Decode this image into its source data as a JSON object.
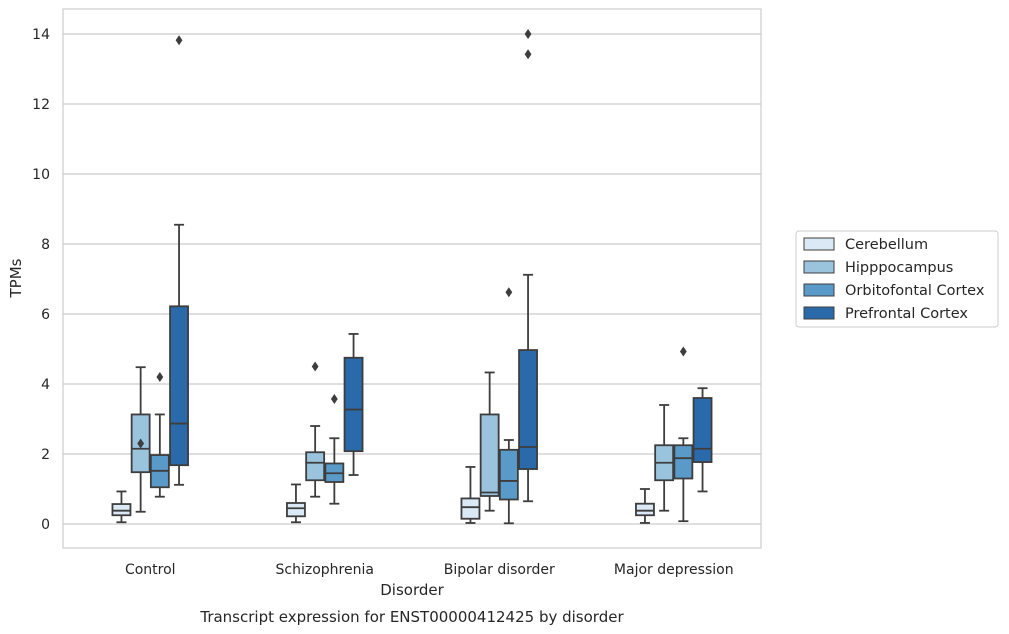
{
  "chart_data": {
    "type": "box",
    "title": "Transcript expression for ENST00000412425 by disorder",
    "xlabel": "Disorder",
    "ylabel": "TPMs",
    "ylim": [
      -0.7,
      14.7
    ],
    "yticks": [
      0,
      2,
      4,
      6,
      8,
      10,
      12,
      14
    ],
    "grid": "horizontal",
    "legend_position": "right",
    "categories": [
      "Control",
      "Schizophrenia",
      "Bipolar disorder",
      "Major depression"
    ],
    "series": [
      {
        "name": "Cerebellum",
        "color": "#dbe9f6",
        "boxes": [
          {
            "q1": 0.25,
            "median": 0.38,
            "q3": 0.57,
            "whislo": 0.05,
            "whishi": 0.93,
            "fliers": []
          },
          {
            "q1": 0.22,
            "median": 0.45,
            "q3": 0.6,
            "whislo": 0.05,
            "whishi": 1.13,
            "fliers": []
          },
          {
            "q1": 0.15,
            "median": 0.48,
            "q3": 0.73,
            "whislo": 0.03,
            "whishi": 1.63,
            "fliers": []
          },
          {
            "q1": 0.25,
            "median": 0.38,
            "q3": 0.58,
            "whislo": 0.03,
            "whishi": 1.0,
            "fliers": []
          }
        ]
      },
      {
        "name": "Hipppocampus",
        "color": "#9ac3de",
        "boxes": [
          {
            "q1": 1.48,
            "median": 2.15,
            "q3": 3.13,
            "whislo": 0.35,
            "whishi": 4.48,
            "fliers": [
              2.3
            ]
          },
          {
            "q1": 1.25,
            "median": 1.75,
            "q3": 2.05,
            "whislo": 0.78,
            "whishi": 2.8,
            "fliers": [
              4.5
            ]
          },
          {
            "q1": 0.8,
            "median": 0.9,
            "q3": 3.13,
            "whislo": 0.38,
            "whishi": 4.33,
            "fliers": []
          },
          {
            "q1": 1.25,
            "median": 1.75,
            "q3": 2.25,
            "whislo": 0.38,
            "whishi": 3.4,
            "fliers": []
          }
        ]
      },
      {
        "name": "Orbitofontal Cortex",
        "color": "#5a9ac9",
        "boxes": [
          {
            "q1": 1.05,
            "median": 1.52,
            "q3": 1.97,
            "whislo": 0.78,
            "whishi": 3.13,
            "fliers": [
              4.2
            ]
          },
          {
            "q1": 1.2,
            "median": 1.45,
            "q3": 1.73,
            "whislo": 0.58,
            "whishi": 2.45,
            "fliers": [
              3.57
            ]
          },
          {
            "q1": 0.7,
            "median": 1.23,
            "q3": 2.12,
            "whislo": 0.02,
            "whishi": 2.4,
            "fliers": [
              6.62
            ]
          },
          {
            "q1": 1.3,
            "median": 1.88,
            "q3": 2.25,
            "whislo": 0.08,
            "whishi": 2.45,
            "fliers": [
              4.93
            ]
          }
        ]
      },
      {
        "name": "Prefrontal Cortex",
        "color": "#2a6aab",
        "boxes": [
          {
            "q1": 1.68,
            "median": 2.87,
            "q3": 6.22,
            "whislo": 1.12,
            "whishi": 8.55,
            "fliers": [
              13.82
            ]
          },
          {
            "q1": 2.08,
            "median": 3.27,
            "q3": 4.75,
            "whislo": 1.4,
            "whishi": 5.43,
            "fliers": []
          },
          {
            "q1": 1.57,
            "median": 2.2,
            "q3": 4.97,
            "whislo": 0.65,
            "whishi": 7.12,
            "fliers": [
              13.42,
              14.0
            ]
          },
          {
            "q1": 1.77,
            "median": 2.15,
            "q3": 3.6,
            "whislo": 0.93,
            "whishi": 3.88,
            "fliers": []
          }
        ]
      }
    ]
  }
}
